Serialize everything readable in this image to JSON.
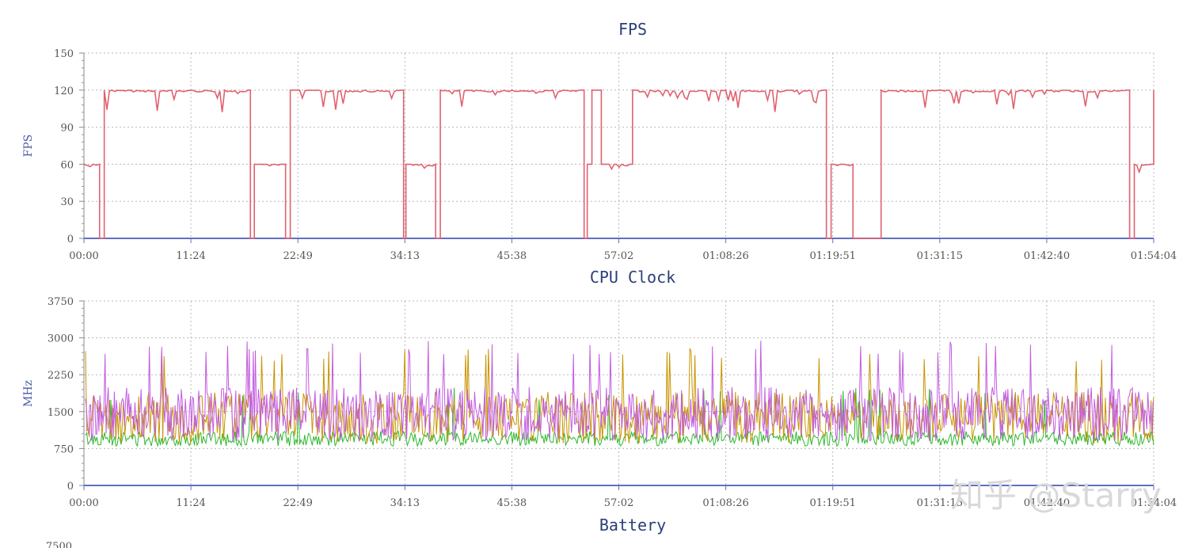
{
  "chart_data": [
    {
      "type": "line",
      "title": "FPS",
      "ylabel": "FPS",
      "ylim": [
        0,
        150
      ],
      "yticks": [
        "0",
        "30",
        "60",
        "90",
        "120",
        "150"
      ],
      "xticks": [
        "00:00",
        "11:24",
        "22:49",
        "34:13",
        "45:38",
        "57:02",
        "01:08:26",
        "01:19:51",
        "01:31:15",
        "01:42:40",
        "01:54:04"
      ],
      "grid": true,
      "colors": {
        "line": "#e06270"
      },
      "series": [
        {
          "x": [
            "00:00",
            "01:00",
            "01:40",
            "02:10",
            "03:00",
            "05:00",
            "11:24",
            "15:00",
            "17:30",
            "17:45",
            "18:10",
            "18:50",
            "19:30",
            "21:00",
            "21:30",
            "22:00",
            "22:30",
            "23:00",
            "25:00",
            "30:00",
            "33:50",
            "34:05",
            "34:20",
            "34:50",
            "36:00",
            "37:30",
            "38:00",
            "45:38",
            "50:00",
            "53:00",
            "53:20",
            "53:40",
            "54:10",
            "54:40",
            "55:10",
            "55:40",
            "56:00",
            "57:20",
            "58:30",
            "59:00",
            "01:02:00",
            "01:08:26",
            "01:15:00",
            "01:18:50",
            "01:19:10",
            "01:19:40",
            "01:20:00",
            "01:21:00",
            "01:22:00",
            "01:25:00",
            "01:31:15",
            "01:42:40",
            "01:51:10",
            "01:51:30",
            "01:52:00",
            "01:53:50",
            "01:54:04"
          ],
          "y": [
            60,
            60,
            0,
            120,
            120,
            120,
            120,
            120,
            120,
            0,
            60,
            60,
            60,
            60,
            0,
            120,
            120,
            120,
            120,
            120,
            120,
            0,
            60,
            60,
            60,
            0,
            120,
            120,
            120,
            120,
            0,
            60,
            120,
            120,
            60,
            60,
            60,
            60,
            120,
            120,
            120,
            120,
            120,
            120,
            0,
            60,
            60,
            60,
            0,
            120,
            120,
            120,
            120,
            0,
            60,
            60,
            120
          ]
        }
      ]
    },
    {
      "type": "line",
      "title": "CPU Clock",
      "ylabel": "MHz",
      "ylim": [
        0,
        3750
      ],
      "yticks": [
        "0",
        "750",
        "1500",
        "2250",
        "3000",
        "3750"
      ],
      "xticks": [
        "00:00",
        "11:24",
        "22:49",
        "34:13",
        "45:38",
        "57:02",
        "01:08:26",
        "01:19:51",
        "01:31:15",
        "01:42:40",
        "01:54:04"
      ],
      "grid": true,
      "series": [
        {
          "color": "#2db82d",
          "y_typical": [
            800,
            1100
          ],
          "y_peak": 2000
        },
        {
          "color": "#c89400",
          "y_typical": [
            850,
            1900
          ],
          "y_peak": 2800
        },
        {
          "color": "#c25be0",
          "y_typical": [
            900,
            2000
          ],
          "y_peak": 2950
        }
      ]
    },
    {
      "type": "line",
      "title": "Battery",
      "yticks_visible": [
        "7500"
      ]
    }
  ],
  "watermark": "知乎 @Starry"
}
